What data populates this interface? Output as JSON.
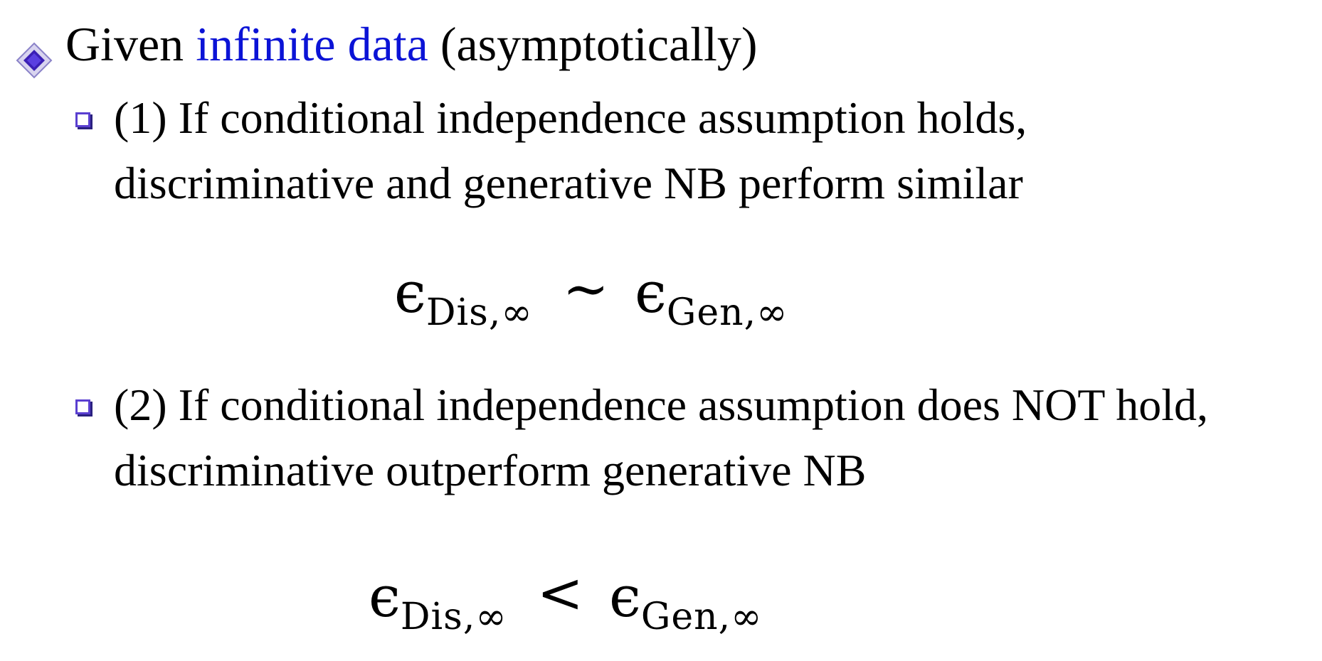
{
  "slide": {
    "bullet1": {
      "icon": "diamond-bullet-icon",
      "prefix": "Given ",
      "highlight": "infinite data",
      "suffix": " (asymptotically)",
      "highlight_color": "#0b13d6"
    },
    "sub1": {
      "icon": "square-bullet-icon",
      "line1": "(1) If conditional independence assumption holds,",
      "line2": "discriminative and generative NB perform similar"
    },
    "eq1": {
      "lhs_symbol": "ϵ",
      "lhs_sub": "Dis,∞",
      "relation": "∼",
      "rhs_symbol": "ϵ",
      "rhs_sub": "Gen,∞"
    },
    "sub2": {
      "icon": "square-bullet-icon",
      "line1": "(2) If conditional independence assumption does NOT hold,",
      "line2": "discriminative outperform generative NB"
    },
    "eq2": {
      "lhs_symbol": "ϵ",
      "lhs_sub": "Dis,∞",
      "relation": "<",
      "rhs_symbol": "ϵ",
      "rhs_sub": "Gen,∞"
    }
  }
}
